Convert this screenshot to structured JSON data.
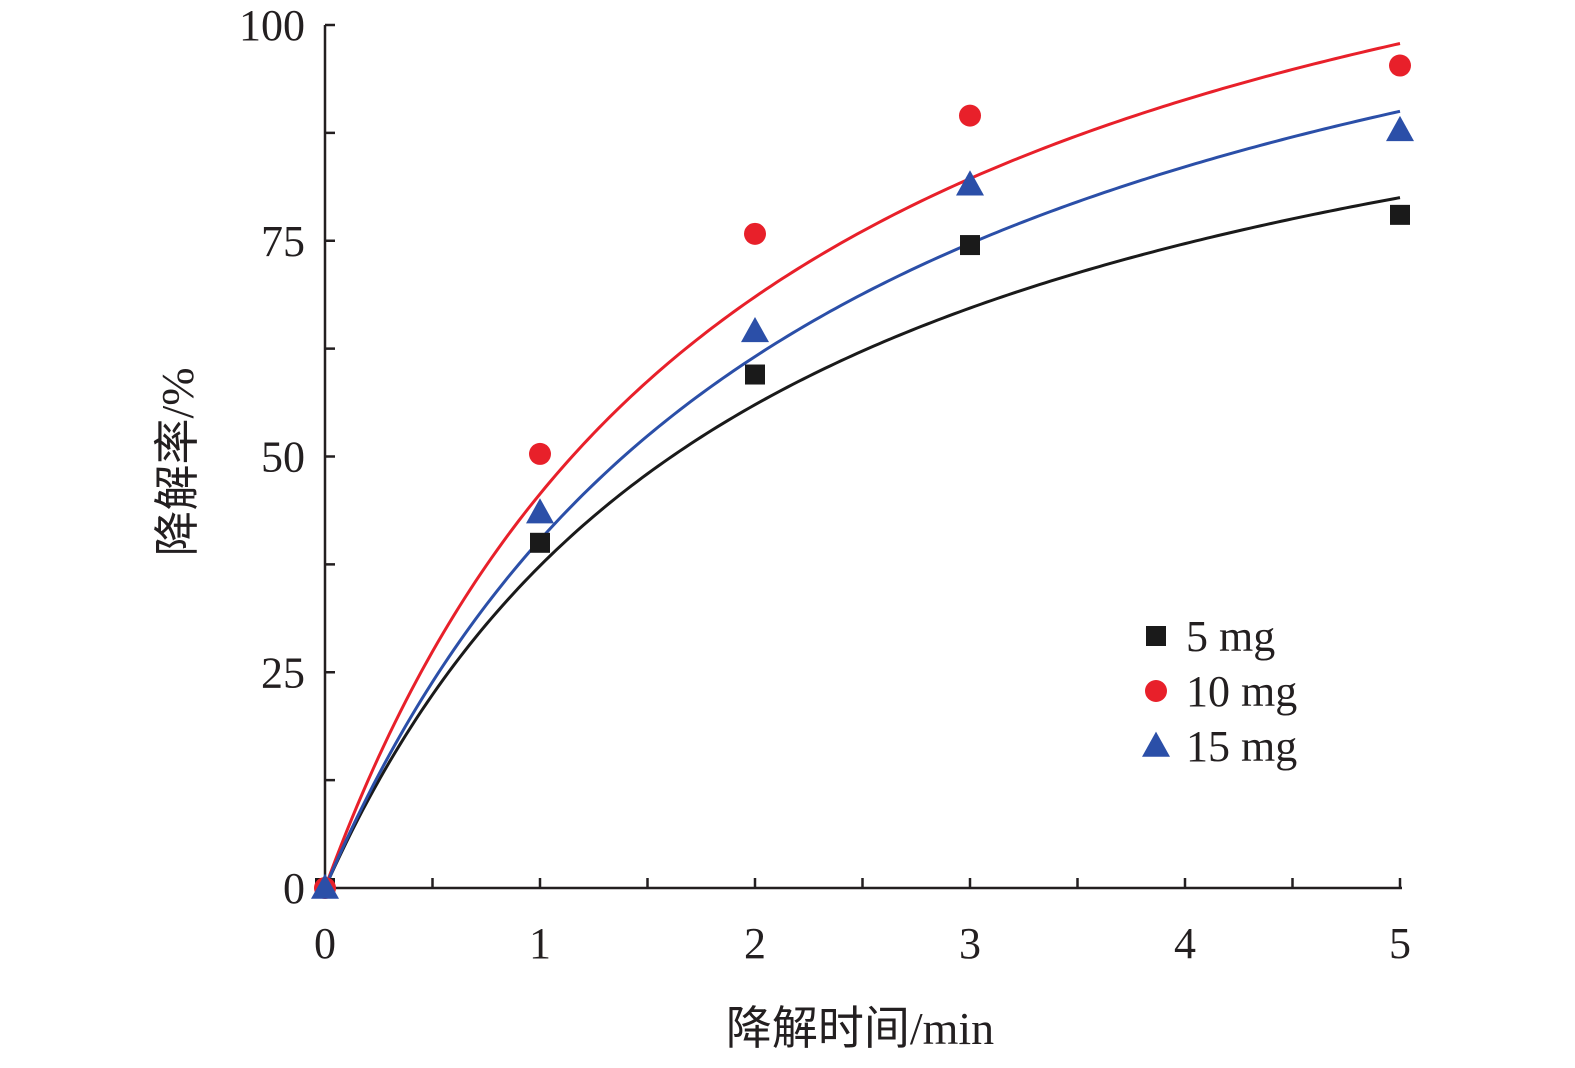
{
  "chart_data": {
    "type": "scatter",
    "title": "",
    "xlabel": "降解时间/min",
    "ylabel": "降解率/%",
    "xlim": [
      0,
      5
    ],
    "ylim": [
      0,
      100
    ],
    "x_ticks": [
      "0",
      "1",
      "2",
      "3",
      "4",
      "5"
    ],
    "y_ticks": [
      "0",
      "25",
      "50",
      "75",
      "100"
    ],
    "grid": false,
    "legend_position": "bottom-right",
    "series": [
      {
        "name": "5 mg",
        "marker": "square",
        "color": "#1a1a1a",
        "x": [
          0,
          1,
          2,
          3,
          5
        ],
        "y": [
          0,
          40,
          59.5,
          74.5,
          78
        ],
        "fit": {
          "qmax": 112,
          "k": 0.5
        }
      },
      {
        "name": "10 mg",
        "marker": "circle",
        "color": "#e8202a",
        "x": [
          0,
          1,
          2,
          3,
          5
        ],
        "y": [
          0,
          50.3,
          75.8,
          89.5,
          95.3
        ],
        "fit": {
          "qmax": 137,
          "k": 0.5
        }
      },
      {
        "name": "15 mg",
        "marker": "triangle",
        "color": "#2b4fa8",
        "x": [
          0,
          1,
          2,
          3,
          5
        ],
        "y": [
          0,
          43.5,
          64.5,
          81.5,
          87.8
        ],
        "fit": {
          "qmax": 130,
          "k": 0.45
        }
      }
    ]
  }
}
